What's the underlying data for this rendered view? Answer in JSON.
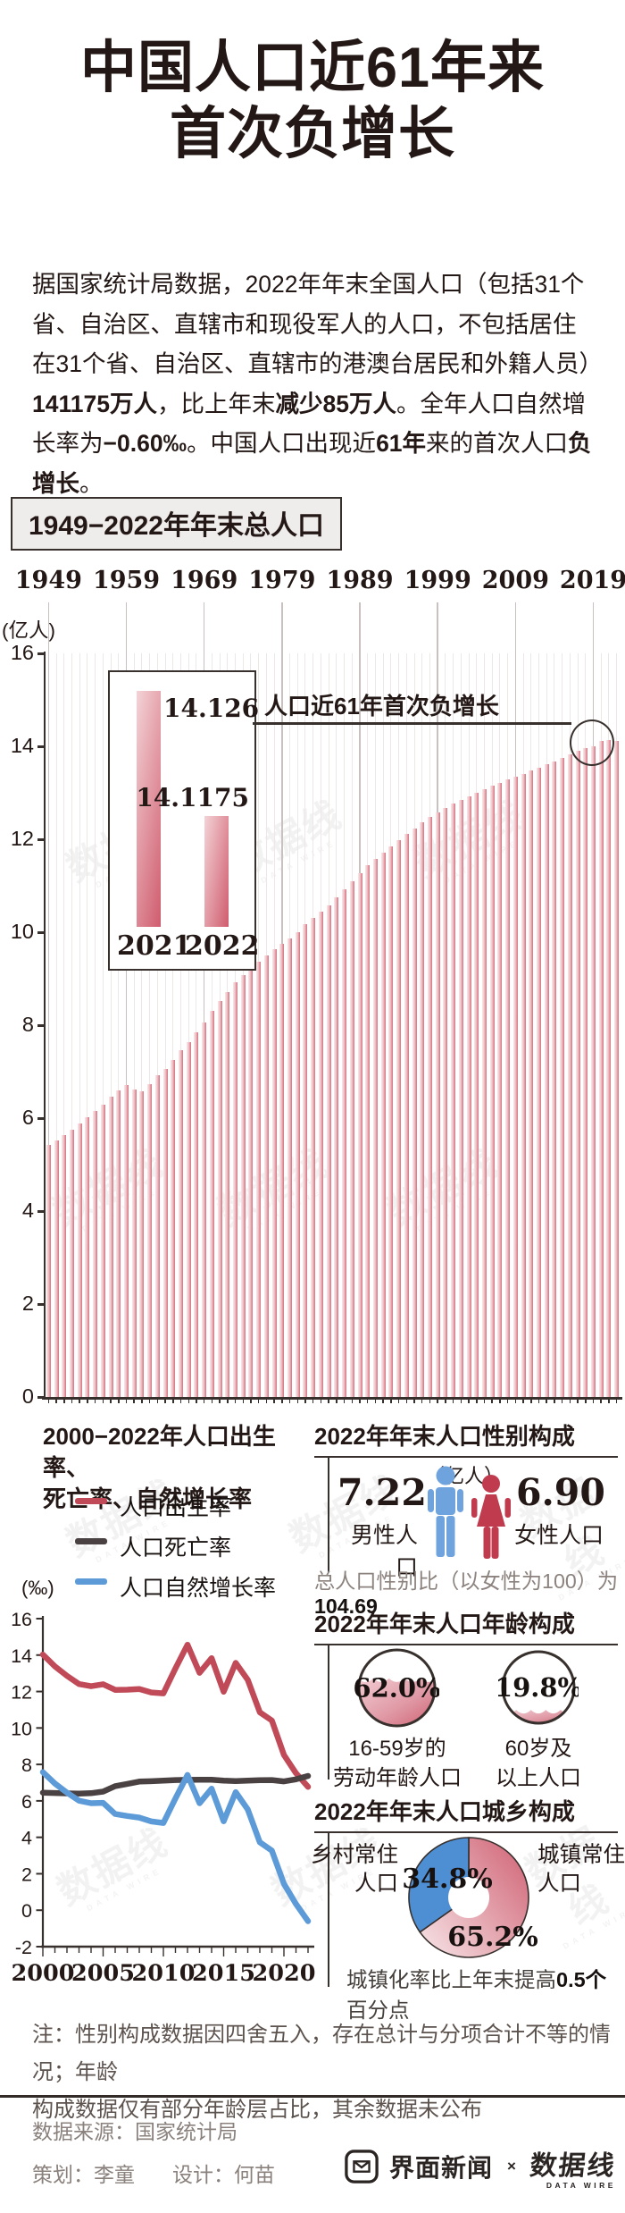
{
  "title": {
    "line1": "中国人口近61年来",
    "line2": "首次负增长"
  },
  "intro_segments": [
    {
      "text": "据国家统计局数据，2022年年末全国人口（包括31个省、自治区、直辖市和现役军人的人口，不包括居住在31个省、自治区、直辖市的港澳台居民和外籍人员）",
      "bold": false
    },
    {
      "text": "141175万人",
      "bold": true
    },
    {
      "text": "，比上年末",
      "bold": false
    },
    {
      "text": "减少85万人",
      "bold": true
    },
    {
      "text": "。全年人口自然增长率为",
      "bold": false
    },
    {
      "text": "−0.60‰",
      "bold": true
    },
    {
      "text": "。中国人口出现近",
      "bold": false
    },
    {
      "text": "61年",
      "bold": true
    },
    {
      "text": "来的首次人口",
      "bold": false
    },
    {
      "text": "负增长",
      "bold": true
    },
    {
      "text": "。",
      "bold": false
    }
  ],
  "pop_chart": {
    "header": "1949−2022年年末总人口",
    "unit_label": "(亿人)",
    "decade_labels": [
      "1949",
      "1959",
      "1969",
      "1979",
      "1989",
      "1999",
      "2009",
      "2019"
    ],
    "y_ticks": [
      16,
      14,
      12,
      10,
      8,
      6,
      4,
      2,
      0
    ],
    "annotation": "人口近61年首次负增长",
    "inset": {
      "years": [
        "2021",
        "2022"
      ],
      "value_labels": [
        "14.126",
        "14.1175"
      ],
      "values": [
        14.126,
        14.1175
      ]
    }
  },
  "rates_chart": {
    "header_line1": "2000−2022年人口出生率、",
    "header_line2": "死亡率、自然增长率",
    "unit_label": "(‰)",
    "legend": [
      {
        "label": "人口出生率",
        "color": "#c04a57"
      },
      {
        "label": "人口死亡率",
        "color": "#4a4142"
      },
      {
        "label": "人口自然增长率",
        "color": "#5d9bd8"
      }
    ],
    "y_ticks": [
      16,
      14,
      12,
      10,
      8,
      6,
      4,
      2,
      0,
      -2
    ],
    "x_labels": [
      2000,
      2005,
      2010,
      2015,
      2020
    ]
  },
  "gender_panel": {
    "header": "2022年年末人口性别构成",
    "unit_label": "（亿人）",
    "male": {
      "value": "7.22",
      "label": "男性人口",
      "color": "#6fa3dd"
    },
    "female": {
      "value": "6.90",
      "label": "女性人口",
      "color": "#bf3b4d"
    },
    "note_prefix": "总人口性别比（以女性为100）为",
    "note_value": "104.69"
  },
  "age_panel": {
    "header": "2022年年末人口年龄构成",
    "items": [
      {
        "pct_label": "62.0%",
        "pct": 62.0,
        "line1": "16-59岁的",
        "line2": "劳动年龄人口"
      },
      {
        "pct_label": "19.8%",
        "pct": 19.8,
        "line1": "60岁及",
        "line2": "以上人口"
      }
    ]
  },
  "urban_panel": {
    "header": "2022年年末人口城乡构成",
    "rural_label_line1": "乡村常住",
    "rural_label_line2": "人口",
    "urban_label_line1": "城镇常住",
    "urban_label_line2": "人口",
    "rural_pct_label": "34.8%",
    "urban_pct_label": "65.2%",
    "note_prefix": "城镇化率比上年末提高",
    "note_bold": "0.5个",
    "note_suffix": "百分点"
  },
  "footnote_line1": "注：性别构成数据因四舍五入，存在总计与分项合计不等的情况；年龄",
  "footnote_line2": "构成数据仅有部分年龄层占比，其余数据未公布",
  "footer": {
    "source": "数据来源：国家统计局",
    "credit1": "策划：李童",
    "credit2": "设计：何苗",
    "jiemian": "界面新闻",
    "cross": "×",
    "datawire_cn": "数据线",
    "datawire_en": "DATA WIRE"
  },
  "watermark": {
    "cn": "数据线",
    "en": "DATA WIRE"
  },
  "colors": {
    "ink": "#231815",
    "axis": "#37302d",
    "bar_light": "#f8e9ea",
    "bar_dark": "#d5717f",
    "birth_red": "#c04a57",
    "death_dark": "#4a4142",
    "growth_blue": "#5d9bd8",
    "pie_blue": "#4e8ed2",
    "pie_pink_dark": "#d2697a",
    "pie_pink_light": "#f7e6e8"
  },
  "chart_data": [
    {
      "type": "bar",
      "title": "1949−2022年年末总人口",
      "ylabel": "亿人",
      "ylim": [
        0,
        16
      ],
      "x_start": 1949,
      "x_end": 2022,
      "values": [
        5.4167,
        5.5196,
        5.63,
        5.7482,
        5.8796,
        6.0266,
        6.1465,
        6.2828,
        6.4653,
        6.5994,
        6.7207,
        6.6207,
        6.5859,
        6.7295,
        6.9172,
        7.0499,
        7.2538,
        7.4542,
        7.6368,
        7.8534,
        8.0671,
        8.2992,
        8.5229,
        8.7177,
        8.9211,
        9.0859,
        9.242,
        9.3717,
        9.4974,
        9.6259,
        9.7542,
        9.8705,
        10.0072,
        10.1654,
        10.3008,
        10.4357,
        10.5851,
        10.7507,
        10.93,
        11.1026,
        11.2704,
        11.4333,
        11.5823,
        11.7171,
        11.8517,
        11.985,
        12.1121,
        12.2389,
        12.3626,
        12.4761,
        12.5786,
        12.6743,
        12.7627,
        12.8453,
        12.9227,
        12.9988,
        13.0756,
        13.1448,
        13.2129,
        13.2802,
        13.345,
        13.4091,
        13.4735,
        13.5404,
        13.6072,
        13.6782,
        13.7462,
        13.8271,
        13.9008,
        13.9538,
        14.0005,
        14.1212,
        14.126,
        14.1175
      ],
      "annotation": "人口近61年首次负增长",
      "inset_values": {
        "2021": 14.126,
        "2022": 14.1175
      }
    },
    {
      "type": "line",
      "title": "2000−2022年人口出生率、死亡率、自然增长率",
      "ylabel": "‰",
      "ylim": [
        -2,
        16
      ],
      "x_start": 2000,
      "x_end": 2022,
      "series": [
        {
          "name": "人口出生率",
          "color": "#c04a57",
          "values": [
            14.03,
            13.38,
            12.86,
            12.41,
            12.29,
            12.4,
            12.09,
            12.1,
            12.14,
            11.95,
            11.9,
            13.27,
            14.57,
            13.03,
            13.83,
            11.99,
            13.57,
            12.64,
            10.86,
            10.41,
            8.52,
            7.52,
            6.77
          ]
        },
        {
          "name": "人口死亡率",
          "color": "#4a4142",
          "values": [
            6.45,
            6.43,
            6.41,
            6.4,
            6.42,
            6.51,
            6.81,
            6.93,
            7.06,
            7.08,
            7.11,
            7.14,
            7.15,
            7.16,
            7.16,
            7.11,
            7.09,
            7.11,
            7.13,
            7.14,
            7.07,
            7.18,
            7.37
          ]
        },
        {
          "name": "人口自然增长率",
          "color": "#5d9bd8",
          "values": [
            7.58,
            6.95,
            6.45,
            6.01,
            5.87,
            5.89,
            5.28,
            5.17,
            5.08,
            4.87,
            4.79,
            6.13,
            7.42,
            5.87,
            6.67,
            4.88,
            6.48,
            5.53,
            3.73,
            3.27,
            1.45,
            0.34,
            -0.6
          ]
        }
      ]
    },
    {
      "type": "pictogram",
      "title": "2022年年末人口性别构成",
      "unit": "亿人",
      "categories": [
        "男性人口",
        "女性人口"
      ],
      "values": [
        7.22,
        6.9
      ],
      "note": "总人口性别比（以女性为100）为104.69"
    },
    {
      "type": "donut",
      "title": "2022年年末人口年龄构成",
      "categories": [
        "16-59岁的劳动年龄人口",
        "60岁及以上人口"
      ],
      "values": [
        62.0,
        19.8
      ]
    },
    {
      "type": "pie",
      "title": "2022年年末人口城乡构成",
      "categories": [
        "城镇常住人口",
        "乡村常住人口"
      ],
      "values": [
        65.2,
        34.8
      ],
      "note": "城镇化率比上年末提高0.5个百分点"
    }
  ]
}
